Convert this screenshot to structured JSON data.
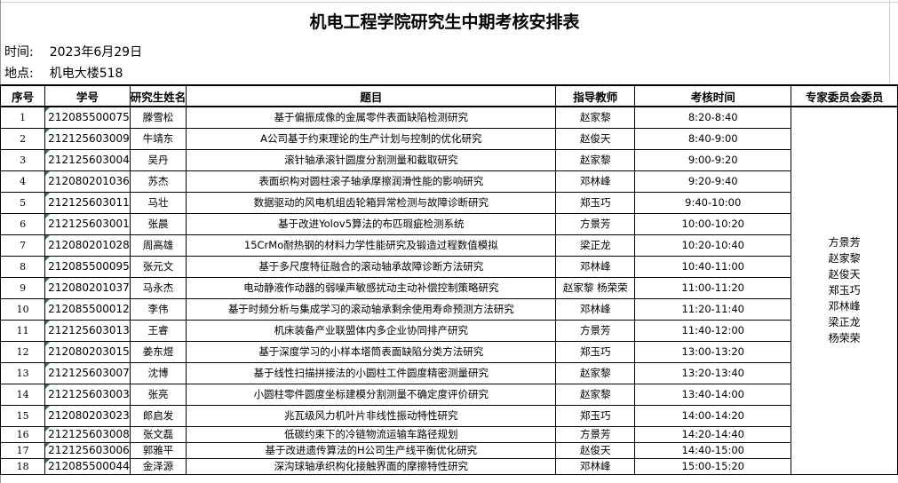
{
  "title": "机电工程学院研究生中期考核安排表",
  "time_label": "时间:",
  "time_value": "2023年6月29日",
  "place_label": "地点:",
  "place_value": "机电大楼518",
  "headers": [
    "序号",
    "学号",
    "研究生姓名",
    "题目",
    "指导教师",
    "考核时间",
    "专家委员会委员"
  ],
  "rows": [
    [
      "1",
      "212085500075",
      "滕雪松",
      "基于偏振成像的金属零件表面缺陷检测研究",
      "赵家黎",
      "8:20-8:40"
    ],
    [
      "2",
      "212125603009",
      "牛靖东",
      "A公司基于约束理论的生产计划与控制的优化研究",
      "赵俊天",
      "8:40-9:00"
    ],
    [
      "3",
      "212125603004",
      "吴丹",
      "滚针轴承滚针圆度分割测量和截取研究",
      "赵家黎",
      "9:00-9:20"
    ],
    [
      "4",
      "212080201036",
      "苏杰",
      "表面织构对圆柱滚子轴承摩擦润滑性能的影响研究",
      "邓林峰",
      "9:20-9:40"
    ],
    [
      "5",
      "212125603011",
      "马壮",
      "数据驱动的风电机组齿轮箱异常检测与故障诊断研究",
      "郑玉巧",
      "9:40-10:00"
    ],
    [
      "6",
      "212125603001",
      "张晨",
      "基于改进Yolov5算法的布匹瑕疵检测系统",
      "方景芳",
      "10:00-10:20"
    ],
    [
      "7",
      "212080201028",
      "周高雄",
      "15CrMo耐热钢的材料力学性能研究及锻造过程数值模拟",
      "梁正龙",
      "10:20-10:40"
    ],
    [
      "8",
      "212085500095",
      "张元文",
      "基于多尺度特征融合的滚动轴承故障诊断方法研究",
      "邓林峰",
      "10:40-11:00"
    ],
    [
      "9",
      "212080201037",
      "马永杰",
      "电动静液作动器的弱噪声敏感扰动主动补偿控制策略研究",
      "赵家黎 杨荣荣",
      "11:00-11:20"
    ],
    [
      "10",
      "212085500012",
      "李伟",
      "基于时频分析与集成学习的滚动轴承剩余使用寿命预测方法研究",
      "邓林峰",
      "11:20-11:40"
    ],
    [
      "11",
      "212125603013",
      "王睿",
      "机床装备产业联盟体内多企业协同排产研究",
      "方景芳",
      "11:40-12:00"
    ],
    [
      "12",
      "212080203015",
      "姜东煜",
      "基于深度学习的小样本塔筒表面缺陷分类方法研究",
      "郑玉巧",
      "13:00-13:20"
    ],
    [
      "13",
      "212125603007",
      "沈博",
      "基于线性扫描拼接法的小圆柱工件圆度精密测量研究",
      "赵家黎",
      "13:20-13:40"
    ],
    [
      "14",
      "212125603003",
      "张亮",
      "小圆柱零件圆度坐标建模分割测量不确定度评价研究",
      "赵家黎",
      "13:40-14:00"
    ],
    [
      "15",
      "212080203023",
      "郎启发",
      "兆瓦级风力机叶片非线性振动特性研究",
      "郑玉巧",
      "14:00-14:20"
    ],
    [
      "16",
      "212125603008",
      "张文磊",
      "低碳约束下的冷链物流运输车路径规划",
      "方景芳",
      "14:20-14:40"
    ],
    [
      "17",
      "212125603006",
      "郭雅平",
      "基于改进遗传算法的H公司生产线平衡优化研究",
      "赵俊天",
      "14:40-15:00"
    ],
    [
      "18",
      "212085500044",
      "金泽源",
      "深沟球轴承织构化接触界面的摩擦特性研究",
      "邓林峰",
      "15:00-15:20"
    ]
  ],
  "committee": [
    "方景芳",
    "赵家黎",
    "赵俊天",
    "郑玉巧",
    "邓林峰",
    "梁正龙",
    "杨荣荣"
  ],
  "colors": {
    "comment_marker": "#1e8a3a"
  }
}
